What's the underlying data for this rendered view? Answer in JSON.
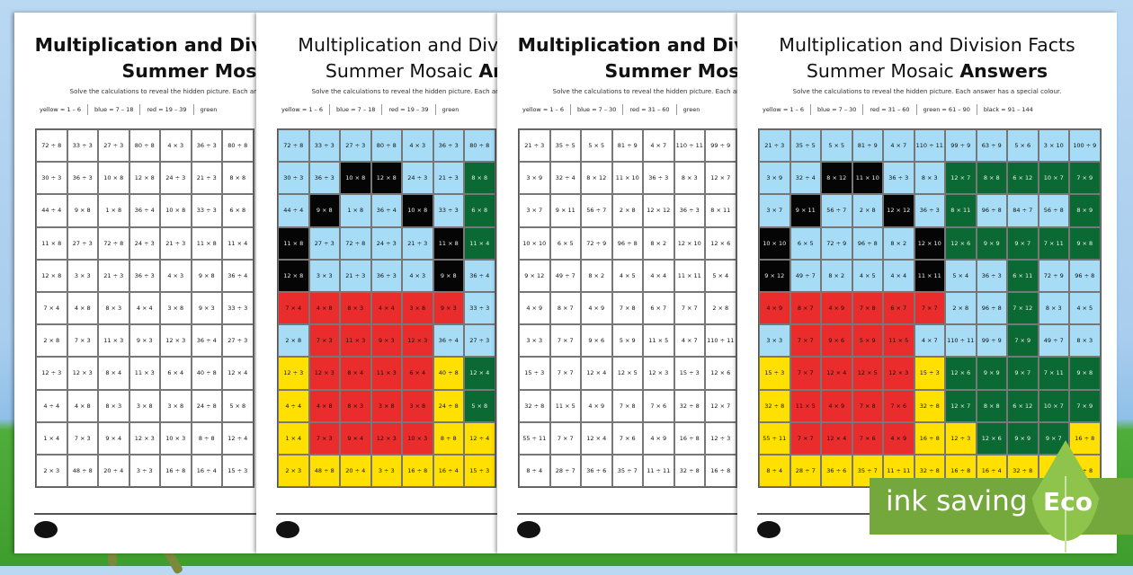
{
  "colors": {
    "B": "#a6dcf5",
    "K": "#050505",
    "G": "#0b6a33",
    "R": "#ea2c2c",
    "Y": "#ffe000",
    "W": "#ffffff"
  },
  "mosaic_colors": [
    "BBBBBBBBBBB",
    "BBKKBBGGGGG",
    "BKBBKBGBBBG",
    "KBBBBKGGGGG",
    "KBBBBKBBGBB",
    "RRRRRRBBGBB",
    "BRRRRBBBGBB",
    "YRRRRYGGGGG",
    "YRRRRYGGGGG",
    "YRRRRYYGGGY",
    "YYYYYYYYYYY"
  ],
  "grids": {
    "A": [
      [
        "72 ÷ 8",
        "33 ÷ 3",
        "27 ÷ 3",
        "80 ÷ 8",
        "4 × 3",
        "36 ÷ 3",
        "80 ÷ 8"
      ],
      [
        "30 ÷ 3",
        "36 ÷ 3",
        "10 × 8",
        "12 × 8",
        "24 ÷ 3",
        "21 ÷ 3",
        "8 × 8"
      ],
      [
        "44 ÷ 4",
        "9 × 8",
        "1 × 8",
        "36 ÷ 4",
        "10 × 8",
        "33 ÷ 3",
        "6 × 8"
      ],
      [
        "11 × 8",
        "27 ÷ 3",
        "72 ÷ 8",
        "24 ÷ 3",
        "21 ÷ 3",
        "11 × 8",
        "11 × 4"
      ],
      [
        "12 × 8",
        "3 × 3",
        "21 ÷ 3",
        "36 ÷ 3",
        "4 × 3",
        "9 × 8",
        "36 ÷ 4"
      ],
      [
        "7 × 4",
        "4 × 8",
        "8 × 3",
        "4 × 4",
        "3 × 8",
        "9 × 3",
        "33 ÷ 3"
      ],
      [
        "2 × 8",
        "7 × 3",
        "11 × 3",
        "9 × 3",
        "12 × 3",
        "36 ÷ 4",
        "27 ÷ 3"
      ],
      [
        "12 ÷ 3",
        "12 × 3",
        "8 × 4",
        "11 × 3",
        "6 × 4",
        "40 ÷ 8",
        "12 × 4"
      ],
      [
        "4 ÷ 4",
        "4 × 8",
        "8 × 3",
        "3 × 8",
        "3 × 8",
        "24 ÷ 8",
        "5 × 8"
      ],
      [
        "1 × 4",
        "7 × 3",
        "9 × 4",
        "12 × 3",
        "10 × 3",
        "8 ÷ 8",
        "12 ÷ 4"
      ],
      [
        "2 × 3",
        "48 ÷ 8",
        "20 ÷ 4",
        "3 ÷ 3",
        "16 ÷ 8",
        "16 ÷ 4",
        "15 ÷ 3"
      ]
    ],
    "B": [
      [
        "21 ÷ 3",
        "35 ÷ 5",
        "5 × 5",
        "81 ÷ 9",
        "4 × 7",
        "110 ÷ 11",
        "99 ÷ 9",
        "63 ÷ 9",
        "5 × 6",
        "3 × 10",
        "100 ÷ 9"
      ],
      [
        "3 × 9",
        "32 ÷ 4",
        "8 × 12",
        "11 × 10",
        "36 ÷ 3",
        "8 × 3",
        "12 × 7",
        "8 × 8",
        "6 × 12",
        "10 × 7",
        "7 × 9"
      ],
      [
        "3 × 7",
        "9 × 11",
        "56 ÷ 7",
        "2 × 8",
        "12 × 12",
        "36 ÷ 3",
        "8 × 11",
        "96 ÷ 8",
        "84 ÷ 7",
        "56 ÷ 8",
        "8 × 9"
      ],
      [
        "10 × 10",
        "6 × 5",
        "72 ÷ 9",
        "96 ÷ 8",
        "8 × 2",
        "12 × 10",
        "12 × 6",
        "9 × 9",
        "9 × 7",
        "7 × 11",
        "9 × 8"
      ],
      [
        "9 × 12",
        "49 ÷ 7",
        "8 × 2",
        "4 × 5",
        "4 × 4",
        "11 × 11",
        "5 × 4",
        "36 ÷ 3",
        "6 × 11",
        "72 ÷ 9",
        "96 ÷ 8"
      ],
      [
        "4 × 9",
        "8 × 7",
        "4 × 9",
        "7 × 8",
        "6 × 7",
        "7 × 7",
        "2 × 8",
        "96 ÷ 8",
        "7 × 12",
        "8 × 3",
        "4 × 5"
      ],
      [
        "3 × 3",
        "7 × 7",
        "9 × 6",
        "5 × 9",
        "11 × 5",
        "4 × 7",
        "110 ÷ 11",
        "99 ÷ 9",
        "7 × 9",
        "49 ÷ 7",
        "8 × 3"
      ],
      [
        "15 ÷ 3",
        "7 × 7",
        "12 × 4",
        "12 × 5",
        "12 × 3",
        "15 ÷ 3",
        "12 × 6",
        "9 × 9",
        "9 × 7",
        "7 × 11",
        "9 × 8"
      ],
      [
        "32 ÷ 8",
        "11 × 5",
        "4 × 9",
        "7 × 8",
        "7 × 6",
        "32 ÷ 8",
        "12 × 7",
        "8 × 8",
        "6 × 12",
        "10 × 7",
        "7 × 9"
      ],
      [
        "55 ÷ 11",
        "7 × 7",
        "12 × 4",
        "7 × 6",
        "4 × 9",
        "16 ÷ 8",
        "12 ÷ 3",
        "12 × 6",
        "9 × 9",
        "9 × 7",
        "16 ÷ 8"
      ],
      [
        "8 ÷ 4",
        "28 ÷ 7",
        "36 ÷ 6",
        "35 ÷ 7",
        "11 ÷ 11",
        "32 ÷ 8",
        "16 ÷ 8",
        "16 ÷ 4",
        "32 ÷ 8",
        "",
        "8 ÷ 8"
      ]
    ]
  },
  "pages": [
    {
      "title_line1": "Multiplication and Division Facts",
      "title_line2": "Summer Mosaic",
      "title_answers": "",
      "instructions": "Solve the calculations to reveal the hidden picture. Each answer has a special colour.",
      "key": [
        "yellow = 1 – 6",
        "blue = 7 – 18",
        "red = 19 – 39",
        "green"
      ],
      "grid": "A",
      "answers": false,
      "logo": "twinkl"
    },
    {
      "title_line1": "Multiplication and Division Facts",
      "title_line2": "Summer Mosaic ",
      "title_answers": "Answers",
      "instructions": "Solve the calculations to reveal the hidden picture. Each answer has a special colour.",
      "key": [
        "yellow = 1 – 6",
        "blue = 7 – 18",
        "red = 19 – 39",
        "green"
      ],
      "grid": "A",
      "answers": true,
      "logo": "twinkl"
    },
    {
      "title_line1": "Multiplication and Division Facts",
      "title_line2": "Summer Mosaic",
      "title_answers": "",
      "instructions": "Solve the calculations to reveal the hidden picture. Each answer has a special colour.",
      "key": [
        "yellow = 1 – 6",
        "blue = 7 – 30",
        "red = 31 – 60",
        "green"
      ],
      "grid": "B",
      "answers": false,
      "logo": "twinkl"
    },
    {
      "title_line1": "Multiplication and Division Facts",
      "title_line2": "Summer Mosaic ",
      "title_answers": "Answers",
      "instructions": "Solve the calculations to reveal the hidden picture. Each answer has a special colour.",
      "key": [
        "yellow = 1 – 6",
        "blue = 7 – 30",
        "red = 31 – 60",
        "green = 61 – 90",
        "black = 91 – 144"
      ],
      "grid": "B",
      "answers": true,
      "logo": "twinkl"
    }
  ],
  "badge": {
    "text": "ink saving",
    "label": "Eco",
    "color": "#74a83c",
    "leaf_color": "#8ec34c"
  }
}
